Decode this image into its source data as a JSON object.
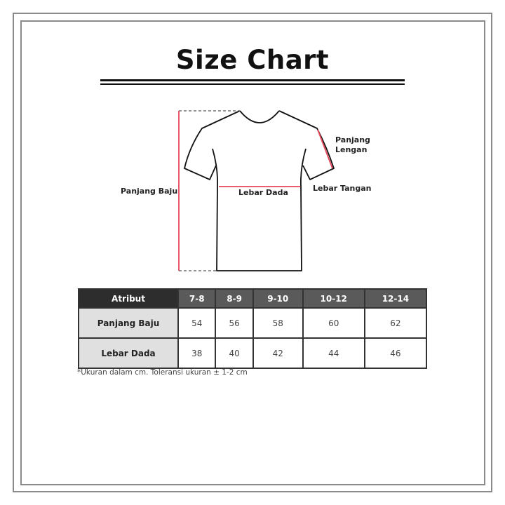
{
  "title": "Size Chart",
  "diagram": {
    "labels": {
      "panjang_baju": "Panjang Baju",
      "lebar_dada": "Lebar Dada",
      "panjang_lengan": "Panjang Lengan",
      "lebar_tangan": "Lebar Tangan"
    },
    "measure_color": "#e8455a"
  },
  "table": {
    "header": [
      "Atribut",
      "7-8",
      "8-9",
      "9-10",
      "10-12",
      "12-14"
    ],
    "rows": [
      {
        "label": "Panjang Baju",
        "values": [
          "54",
          "56",
          "58",
          "60",
          "62"
        ]
      },
      {
        "label": "Lebar Dada",
        "values": [
          "38",
          "40",
          "42",
          "44",
          "46"
        ]
      }
    ]
  },
  "note": "*Ukuran dalam cm. Toleransi ukuran ± 1-2 cm"
}
